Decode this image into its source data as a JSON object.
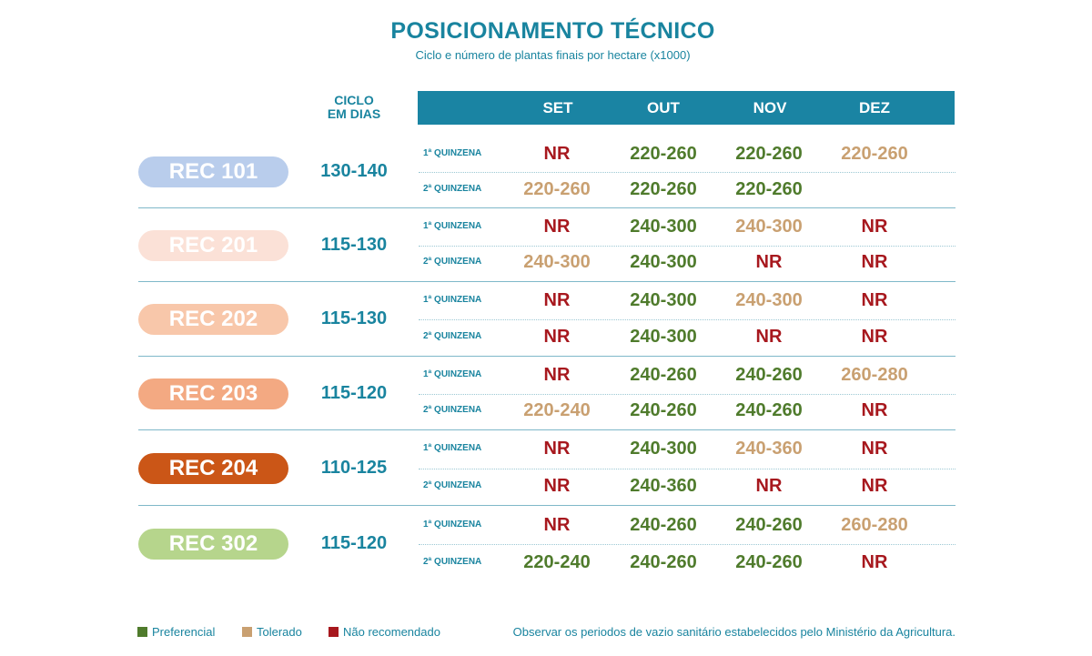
{
  "title": "POSICIONAMENTO TÉCNICO",
  "subtitle": "Ciclo e número de plantas finais por hectare (x1000)",
  "ciclo_header": [
    "CICLO",
    "EM DIAS"
  ],
  "months": [
    "SET",
    "OUT",
    "NOV",
    "DEZ"
  ],
  "quinzena_labels": [
    "1ª QUINZENA",
    "2ª QUINZENA"
  ],
  "colors": {
    "preferencial": "#4f7b2c",
    "tolerado": "#c9a071",
    "nao_recomendado": "#a7181e",
    "header": "#1a84a3"
  },
  "varieties": [
    {
      "name": "REC 101",
      "color": "#b9cdec",
      "cycle": "130-140",
      "rows": [
        [
          {
            "v": "NR",
            "s": "nr"
          },
          {
            "v": "220-260",
            "s": "pref"
          },
          {
            "v": "220-260",
            "s": "pref"
          },
          {
            "v": "220-260",
            "s": "tol"
          }
        ],
        [
          {
            "v": "220-260",
            "s": "tol"
          },
          {
            "v": "220-260",
            "s": "pref"
          },
          {
            "v": "220-260",
            "s": "pref"
          },
          {
            "v": "",
            "s": "none"
          }
        ]
      ]
    },
    {
      "name": "REC 201",
      "color": "#fbe1d7",
      "cycle": "115-130",
      "rows": [
        [
          {
            "v": "NR",
            "s": "nr"
          },
          {
            "v": "240-300",
            "s": "pref"
          },
          {
            "v": "240-300",
            "s": "tol"
          },
          {
            "v": "NR",
            "s": "nr"
          }
        ],
        [
          {
            "v": "240-300",
            "s": "tol"
          },
          {
            "v": "240-300",
            "s": "pref"
          },
          {
            "v": "NR",
            "s": "nr"
          },
          {
            "v": "NR",
            "s": "nr"
          }
        ]
      ]
    },
    {
      "name": "REC 202",
      "color": "#f8c7aa",
      "cycle": "115-130",
      "rows": [
        [
          {
            "v": "NR",
            "s": "nr"
          },
          {
            "v": "240-300",
            "s": "pref"
          },
          {
            "v": "240-300",
            "s": "tol"
          },
          {
            "v": "NR",
            "s": "nr"
          }
        ],
        [
          {
            "v": "NR",
            "s": "nr"
          },
          {
            "v": "240-300",
            "s": "pref"
          },
          {
            "v": "NR",
            "s": "nr"
          },
          {
            "v": "NR",
            "s": "nr"
          }
        ]
      ]
    },
    {
      "name": "REC 203",
      "color": "#f3a982",
      "cycle": "115-120",
      "rows": [
        [
          {
            "v": "NR",
            "s": "nr"
          },
          {
            "v": "240-260",
            "s": "pref"
          },
          {
            "v": "240-260",
            "s": "pref"
          },
          {
            "v": "260-280",
            "s": "tol"
          }
        ],
        [
          {
            "v": "220-240",
            "s": "tol"
          },
          {
            "v": "240-260",
            "s": "pref"
          },
          {
            "v": "240-260",
            "s": "pref"
          },
          {
            "v": "NR",
            "s": "nr"
          }
        ]
      ]
    },
    {
      "name": "REC 204",
      "color": "#cb5617",
      "cycle": "110-125",
      "rows": [
        [
          {
            "v": "NR",
            "s": "nr"
          },
          {
            "v": "240-300",
            "s": "pref"
          },
          {
            "v": "240-360",
            "s": "tol"
          },
          {
            "v": "NR",
            "s": "nr"
          }
        ],
        [
          {
            "v": "NR",
            "s": "nr"
          },
          {
            "v": "240-360",
            "s": "pref"
          },
          {
            "v": "NR",
            "s": "nr"
          },
          {
            "v": "NR",
            "s": "nr"
          }
        ]
      ]
    },
    {
      "name": "REC 302",
      "color": "#b6d58c",
      "cycle": "115-120",
      "rows": [
        [
          {
            "v": "NR",
            "s": "nr"
          },
          {
            "v": "240-260",
            "s": "pref"
          },
          {
            "v": "240-260",
            "s": "pref"
          },
          {
            "v": "260-280",
            "s": "tol"
          }
        ],
        [
          {
            "v": "220-240",
            "s": "pref"
          },
          {
            "v": "240-260",
            "s": "pref"
          },
          {
            "v": "240-260",
            "s": "pref"
          },
          {
            "v": "NR",
            "s": "nr"
          }
        ]
      ]
    }
  ],
  "legend": [
    {
      "label": "Preferencial",
      "color": "#4f7b2c"
    },
    {
      "label": "Tolerado",
      "color": "#c9a071"
    },
    {
      "label": "Não recomendado",
      "color": "#a7181e"
    }
  ],
  "note": "Observar os periodos de vazio sanitário estabelecidos pelo Ministério da Agricultura."
}
